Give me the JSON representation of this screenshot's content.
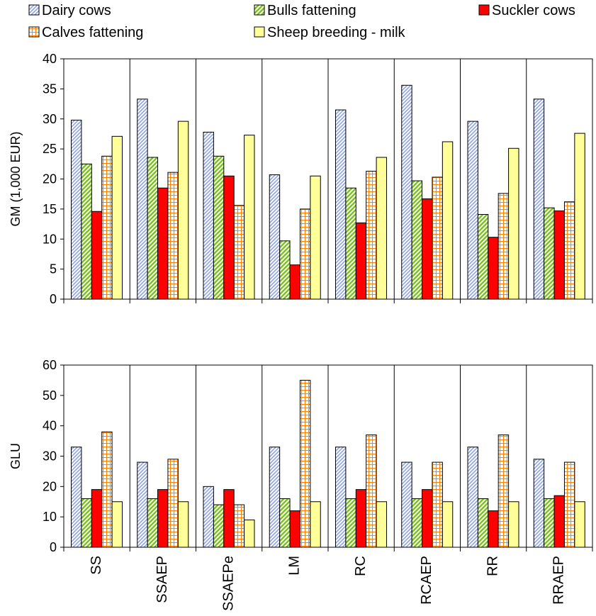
{
  "chart_data": [
    {
      "type": "bar",
      "ylabel": "GM (1,000 EUR)",
      "ylim": [
        0,
        40
      ],
      "yticks": [
        "0",
        "5",
        "10",
        "15",
        "20",
        "25",
        "30",
        "35",
        "40"
      ],
      "grid": "vertical separators between category groups",
      "categories": [
        "SS",
        "SSAEP",
        "SSAEPe",
        "LM",
        "RC",
        "RCAEP",
        "RR",
        "RRAEP"
      ],
      "series": [
        {
          "name": "Dairy cows",
          "values": [
            29.8,
            33.3,
            27.8,
            20.7,
            31.5,
            35.6,
            29.6,
            33.3
          ]
        },
        {
          "name": "Bulls fattening",
          "values": [
            22.5,
            23.6,
            23.8,
            9.7,
            18.5,
            19.7,
            14.1,
            15.2
          ]
        },
        {
          "name": "Suckler cows",
          "values": [
            14.6,
            18.5,
            20.5,
            5.7,
            12.7,
            16.7,
            10.3,
            14.7
          ]
        },
        {
          "name": "Calves fattening",
          "values": [
            23.8,
            21.1,
            15.6,
            15.0,
            21.3,
            20.3,
            17.6,
            16.2
          ]
        },
        {
          "name": "Sheep breeding - milk",
          "values": [
            27.1,
            29.6,
            27.3,
            20.5,
            23.6,
            26.2,
            25.1,
            27.6
          ]
        }
      ]
    },
    {
      "type": "bar",
      "ylabel": "GLU",
      "ylim": [
        0,
        60
      ],
      "yticks": [
        "0",
        "10",
        "20",
        "30",
        "40",
        "50",
        "60"
      ],
      "grid": "vertical separators between category groups",
      "categories": [
        "SS",
        "SSAEP",
        "SSAEPe",
        "LM",
        "RC",
        "RCAEP",
        "RR",
        "RRAEP"
      ],
      "series": [
        {
          "name": "Dairy cows",
          "values": [
            33,
            28,
            20,
            33,
            33,
            28,
            33,
            29
          ]
        },
        {
          "name": "Bulls fattening",
          "values": [
            16,
            16,
            14,
            16,
            16,
            16,
            16,
            16
          ]
        },
        {
          "name": "Suckler cows",
          "values": [
            19,
            19,
            19,
            12,
            19,
            19,
            12,
            17
          ]
        },
        {
          "name": "Calves fattening",
          "values": [
            38,
            29,
            14,
            55,
            37,
            28,
            37,
            28
          ]
        },
        {
          "name": "Sheep breeding - milk",
          "values": [
            15,
            15,
            9,
            15,
            15,
            15,
            15,
            15
          ]
        }
      ]
    }
  ],
  "legend": {
    "placement": "top",
    "items": [
      {
        "label": "Dairy cows",
        "pattern": "diagonal-hatch",
        "color": "#8ea2e6"
      },
      {
        "label": "Bulls fattening",
        "pattern": "diagonal-hatch",
        "color": "#7ebd2a"
      },
      {
        "label": "Suckler cows",
        "pattern": "solid",
        "color": "#ff0000"
      },
      {
        "label": "Calves fattening",
        "pattern": "grid",
        "color": "#ff8000"
      },
      {
        "label": "Sheep breeding - milk",
        "pattern": "solid",
        "color": "#ffff99"
      }
    ]
  }
}
